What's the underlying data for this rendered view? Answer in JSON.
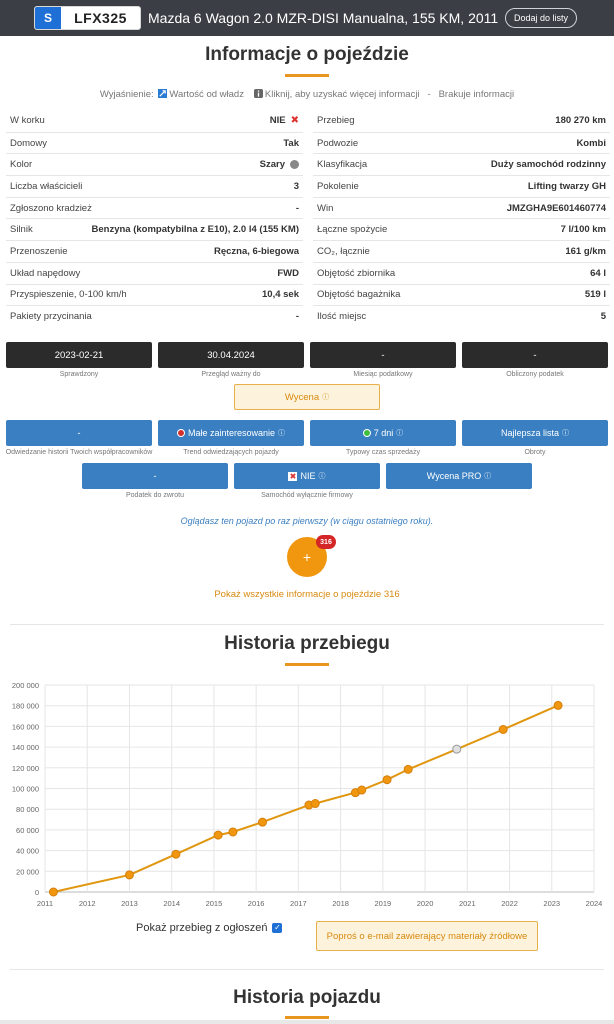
{
  "header": {
    "country": "S",
    "plate": "LFX325",
    "title": "Mazda 6 Wagon 2.0 MZR-DISI Manualna, 155 KM, 2011",
    "add_button": "Dodaj do listy"
  },
  "info_section": {
    "title": "Informacje o pojeździe",
    "legend": {
      "prefix": "Wyjaśnienie:",
      "authority": "Wartość od władz",
      "click": "Kliknij, aby uzyskać więcej informacji",
      "dash": "-",
      "missing": "Brakuje informacji"
    },
    "left_rows": [
      {
        "label": "W korku",
        "value": "NIE",
        "marker": "red-x"
      },
      {
        "label": "Domowy",
        "value": "Tak"
      },
      {
        "label": "Kolor",
        "value": "Szary",
        "marker": "grey-dot"
      },
      {
        "label": "Liczba właścicieli",
        "value": "3"
      },
      {
        "label": "Zgłoszono kradzież",
        "value": "-"
      },
      {
        "label": "Silnik",
        "value": "Benzyna (kompatybilna z E10), 2.0 l4 (155 KM)"
      },
      {
        "label": "Przenoszenie",
        "value": "Ręczna, 6-biegowa"
      },
      {
        "label": "Układ napędowy",
        "value": "FWD"
      },
      {
        "label": "Przyspieszenie, 0-100 km/h",
        "value": "10,4 sek"
      },
      {
        "label": "Pakiety przycinania",
        "value": "-"
      }
    ],
    "right_rows": [
      {
        "label": "Przebieg",
        "value": "180 270 km"
      },
      {
        "label": "Podwozie",
        "value": "Kombi"
      },
      {
        "label": "Klasyfikacja",
        "value": "Duży samochód rodzinny"
      },
      {
        "label": "Pokolenie",
        "value": "Lifting twarzy GH"
      },
      {
        "label": "Win",
        "value": "JMZGHA9E601460774"
      },
      {
        "label": "Łączne spożycie",
        "value": "7 l/100 km"
      },
      {
        "label": "CO₂, łącznie",
        "value": "161 g/km"
      },
      {
        "label": "Objętość zbiornika",
        "value": "64 l"
      },
      {
        "label": "Objętość bagażnika",
        "value": "519 l"
      },
      {
        "label": "Ilość miejsc",
        "value": "5"
      }
    ]
  },
  "dates": [
    {
      "value": "2023-02-21",
      "caption": "Sprawdzony"
    },
    {
      "value": "30.04.2024",
      "caption": "Przegląd ważny do"
    },
    {
      "value": "-",
      "caption": "Miesiąc podatkowy"
    },
    {
      "value": "-",
      "caption": "Obliczony podatek"
    }
  ],
  "wycena": "Wycena",
  "stats_row1": [
    {
      "value": "-",
      "caption": "Odwiedzanie historii Twoich współpracowników"
    },
    {
      "value": "Małe zainteresowanie",
      "caption": "Trend odwiedzających pojazdy",
      "dot": "#d32f2f"
    },
    {
      "value": "7 dni",
      "caption": "Typowy czas sprzedaży",
      "dot": "#3fbf3f"
    },
    {
      "value": "Najlepsza lista",
      "caption": "Obroty"
    }
  ],
  "stats_row2": [
    {
      "value": "-",
      "caption": "Podatek do zwrotu"
    },
    {
      "value": "NIE",
      "caption": "Samochód wyłącznie firmowy"
    },
    {
      "value": "Wycena PRO",
      "caption": ""
    }
  ],
  "first_time_note": "Oglądasz ten pojazd po raz pierwszy (w ciągu ostatniego roku).",
  "plus_label": "+",
  "badge_count": "316",
  "show_all_link": "Pokaż wszystkie informacje o pojeździe 316",
  "mileage_section": {
    "title": "Historia przebiegu",
    "show_ads_label": "Pokaż przebieg z ogłoszeń",
    "show_ads_checked": true,
    "request_button": "Poproś o e-mail zawierający materiały źródłowe"
  },
  "chart_data": {
    "type": "line",
    "x_ticks": [
      "2011",
      "2012",
      "2013",
      "2014",
      "2015",
      "2016",
      "2017",
      "2018",
      "2019",
      "2020",
      "2021",
      "2022",
      "2023",
      "2024"
    ],
    "y_ticks": [
      "0",
      "20 000",
      "40 000",
      "60 000",
      "80 000",
      "100 000",
      "120 000",
      "140 000",
      "160 000",
      "180 000",
      "200 000"
    ],
    "xlim": [
      2011,
      2024
    ],
    "ylim": [
      0,
      200000
    ],
    "grid": true,
    "line_color": "#e0960f",
    "point_color": "#f0960f",
    "ad_point_color": "#e0e0e0",
    "points": [
      {
        "x": 2011.2,
        "y": 0
      },
      {
        "x": 2013.0,
        "y": 16500
      },
      {
        "x": 2014.1,
        "y": 36500
      },
      {
        "x": 2015.1,
        "y": 55000
      },
      {
        "x": 2015.45,
        "y": 58000
      },
      {
        "x": 2016.15,
        "y": 67500
      },
      {
        "x": 2017.25,
        "y": 84000
      },
      {
        "x": 2017.4,
        "y": 85500
      },
      {
        "x": 2018.35,
        "y": 96000
      },
      {
        "x": 2018.5,
        "y": 98500
      },
      {
        "x": 2019.1,
        "y": 108500
      },
      {
        "x": 2019.6,
        "y": 118500
      },
      {
        "x": 2020.75,
        "y": 138000,
        "source": "ad"
      },
      {
        "x": 2021.85,
        "y": 157000
      },
      {
        "x": 2023.15,
        "y": 180270
      }
    ]
  },
  "history_section": {
    "title": "Historia pojazdu"
  }
}
